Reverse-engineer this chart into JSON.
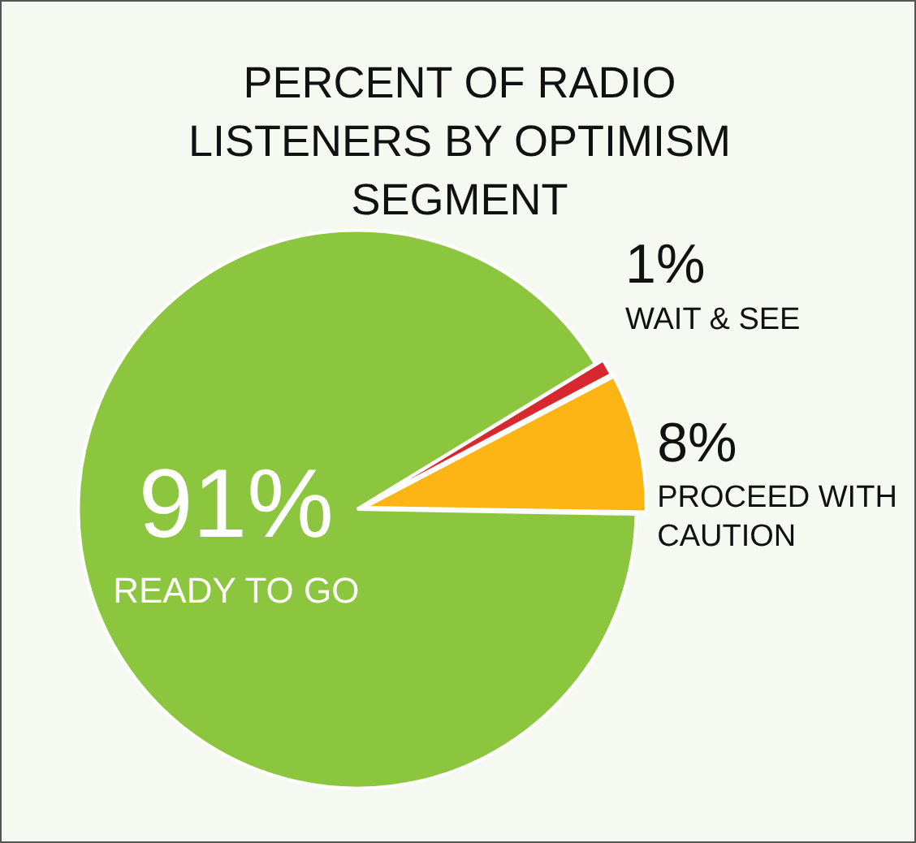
{
  "chart_data": {
    "type": "pie",
    "title": "PERCENT OF RADIO LISTENERS BY OPTIMISM SEGMENT",
    "categories": [
      "READY TO GO",
      "WAIT & SEE",
      "PROCEED WITH CAUTION"
    ],
    "values": [
      91,
      1,
      8
    ],
    "value_labels": [
      "91%",
      "1%",
      "8%"
    ],
    "colors": [
      "#8cc63f",
      "#d7282f",
      "#fdb515"
    ],
    "legend": false
  }
}
